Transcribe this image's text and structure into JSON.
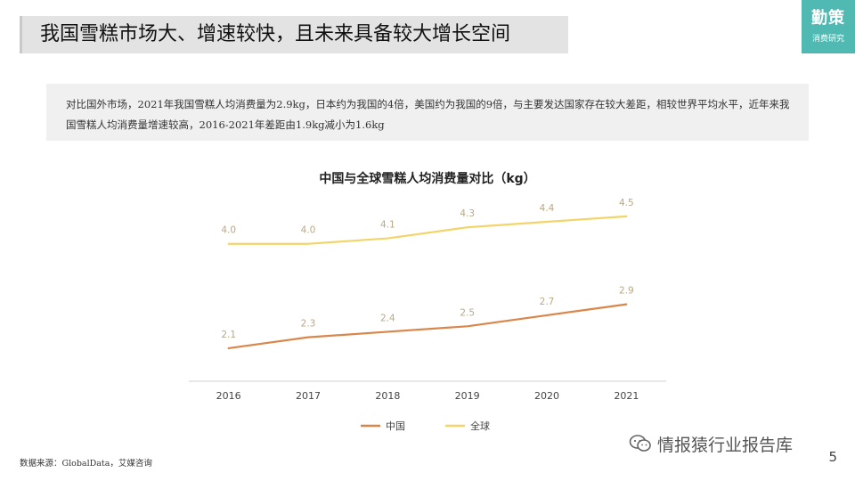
{
  "header": {
    "title": "我国雪糕市场大、增速较快，且未来具备较大增长空间"
  },
  "logo": {
    "main": "勤策",
    "sub": "消费研究"
  },
  "summary": {
    "text": "对比国外市场，2021年我国雪糕人均消费量为2.9kg，日本约为我国的4倍，美国约为我国的9倍，与主要发达国家存在较大差距，相较世界平均水平，近年来我国雪糕人均消费量增速较高，2016-2021年差距由1.9kg减小为1.6kg"
  },
  "chart_data": {
    "type": "line",
    "title": "中国与全球雪糕人均消费量对比（kg）",
    "x": [
      "2016",
      "2017",
      "2018",
      "2019",
      "2020",
      "2021"
    ],
    "series": [
      {
        "name": "中国",
        "values": [
          2.1,
          2.3,
          2.4,
          2.5,
          2.7,
          2.9
        ],
        "labels": [
          "2.1",
          "2.3",
          "2.4",
          "2.5",
          "2.7",
          "2.9"
        ],
        "color": "#d9864a"
      },
      {
        "name": "全球",
        "values": [
          4.0,
          4.0,
          4.1,
          4.3,
          4.4,
          4.5
        ],
        "labels": [
          "4.0",
          "4.0",
          "4.1",
          "4.3",
          "4.4",
          "4.5"
        ],
        "color": "#f2d469"
      }
    ],
    "ylim": [
      1.5,
      5.0
    ],
    "legend": "bottom",
    "grid": false,
    "label_color": "#b8a888"
  },
  "footer": {
    "source": "数据来源：GlobalData，艾媒咨询",
    "watermark": "情报猿行业报告库",
    "watermark_icon": "wechat-icon",
    "page_number": "5"
  }
}
